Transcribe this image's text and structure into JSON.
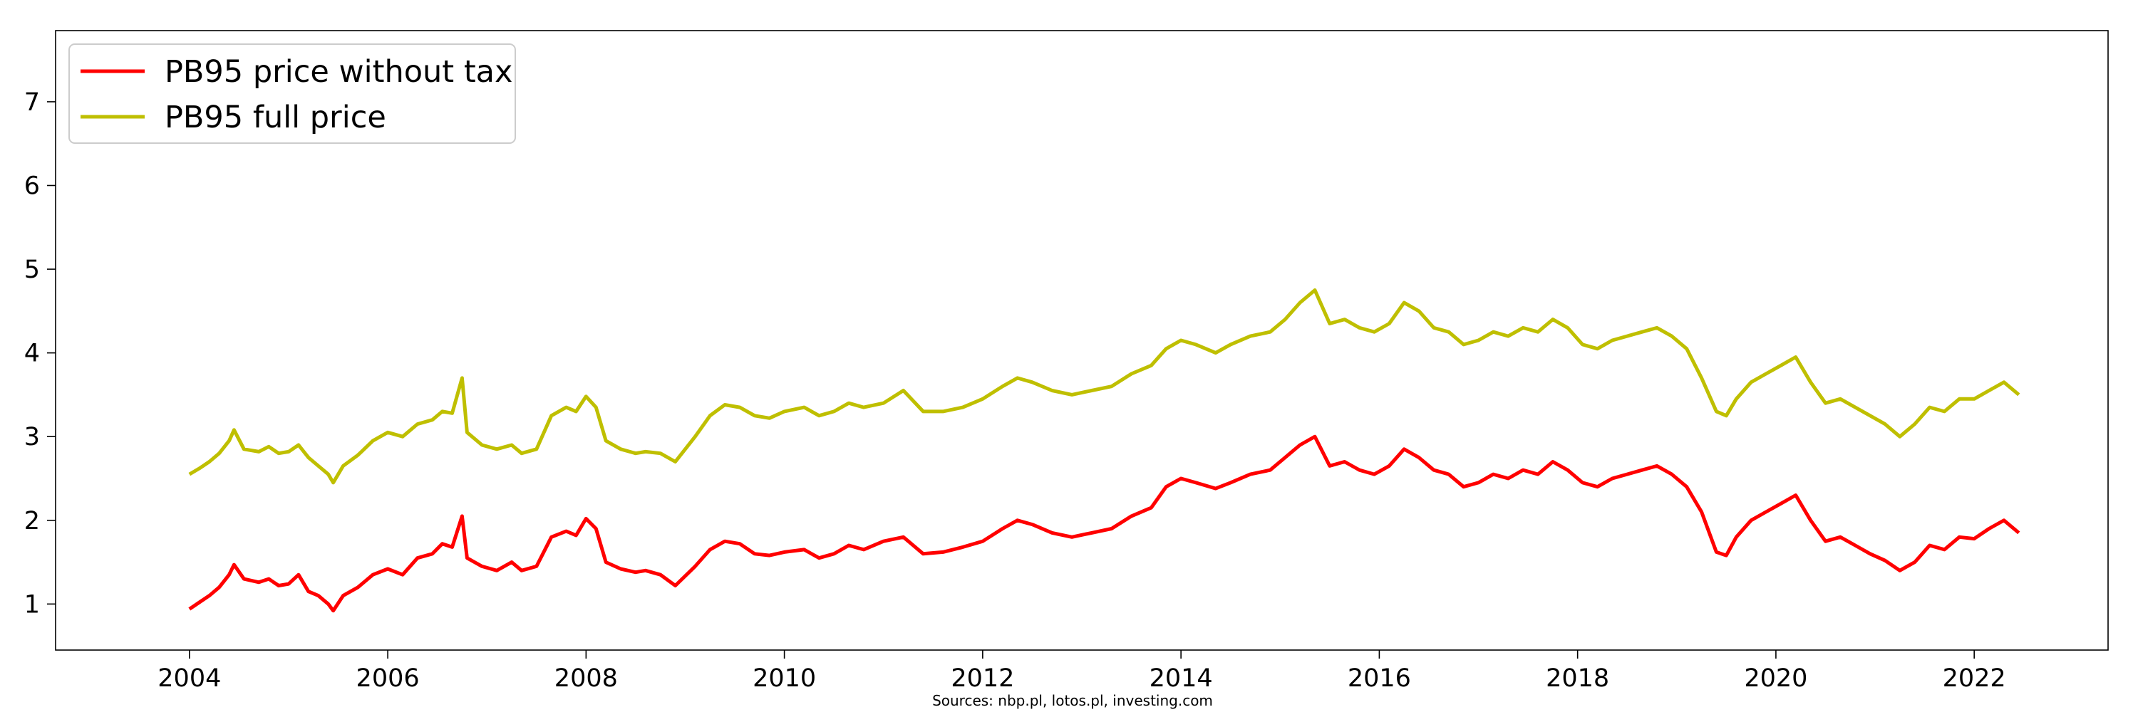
{
  "chart_data": {
    "type": "line",
    "title": "",
    "xlabel": "",
    "ylabel": "",
    "xlim": [
      2002.65,
      2023.35
    ],
    "ylim": [
      0.45,
      7.85
    ],
    "grid": false,
    "legend": "top-left",
    "source": "Sources: nbp.pl, lotos.pl, investing.com",
    "x_ticks": [
      2004,
      2006,
      2008,
      2010,
      2012,
      2014,
      2016,
      2018,
      2020,
      2022
    ],
    "y_ticks": [
      1,
      2,
      3,
      4,
      5,
      6,
      7
    ],
    "series": [
      {
        "name": "PB95 price without tax",
        "color": "#ff0000",
        "points": [
          [
            2004.0,
            0.94
          ],
          [
            2004.1,
            1.02
          ],
          [
            2004.2,
            1.1
          ],
          [
            2004.3,
            1.2
          ],
          [
            2004.4,
            1.35
          ],
          [
            2004.45,
            1.47
          ],
          [
            2004.55,
            1.3
          ],
          [
            2004.7,
            1.26
          ],
          [
            2004.8,
            1.3
          ],
          [
            2004.9,
            1.22
          ],
          [
            2005.0,
            1.24
          ],
          [
            2005.1,
            1.35
          ],
          [
            2005.2,
            1.15
          ],
          [
            2005.3,
            1.1
          ],
          [
            2005.4,
            1.0
          ],
          [
            2005.45,
            0.92
          ],
          [
            2005.55,
            1.1
          ],
          [
            2005.7,
            1.2
          ],
          [
            2005.85,
            1.35
          ],
          [
            2006.0,
            1.42
          ],
          [
            2006.15,
            1.35
          ],
          [
            2006.3,
            1.55
          ],
          [
            2006.45,
            1.6
          ],
          [
            2006.55,
            1.72
          ],
          [
            2006.65,
            1.68
          ],
          [
            2006.75,
            2.05
          ],
          [
            2006.8,
            1.55
          ],
          [
            2006.95,
            1.45
          ],
          [
            2007.1,
            1.4
          ],
          [
            2007.25,
            1.5
          ],
          [
            2007.35,
            1.4
          ],
          [
            2007.5,
            1.45
          ],
          [
            2007.65,
            1.8
          ],
          [
            2007.8,
            1.87
          ],
          [
            2007.9,
            1.82
          ],
          [
            2008.0,
            2.02
          ],
          [
            2008.1,
            1.9
          ],
          [
            2008.2,
            1.5
          ],
          [
            2008.35,
            1.42
          ],
          [
            2008.5,
            1.38
          ],
          [
            2008.6,
            1.4
          ],
          [
            2008.75,
            1.35
          ],
          [
            2008.9,
            1.22
          ],
          [
            2009.1,
            1.45
          ],
          [
            2009.25,
            1.65
          ],
          [
            2009.4,
            1.75
          ],
          [
            2009.55,
            1.72
          ],
          [
            2009.7,
            1.6
          ],
          [
            2009.85,
            1.58
          ],
          [
            2010.0,
            1.62
          ],
          [
            2010.2,
            1.65
          ],
          [
            2010.35,
            1.55
          ],
          [
            2010.5,
            1.6
          ],
          [
            2010.65,
            1.7
          ],
          [
            2010.8,
            1.65
          ],
          [
            2011.0,
            1.75
          ],
          [
            2011.2,
            1.8
          ],
          [
            2011.4,
            1.6
          ],
          [
            2011.6,
            1.62
          ],
          [
            2011.8,
            1.68
          ],
          [
            2012.0,
            1.75
          ],
          [
            2012.2,
            1.9
          ],
          [
            2012.35,
            2.0
          ],
          [
            2012.5,
            1.95
          ],
          [
            2012.7,
            1.85
          ],
          [
            2012.9,
            1.8
          ],
          [
            2013.1,
            1.85
          ],
          [
            2013.3,
            1.9
          ],
          [
            2013.5,
            2.05
          ],
          [
            2013.7,
            2.15
          ],
          [
            2013.85,
            2.4
          ],
          [
            2014.0,
            2.5
          ],
          [
            2014.15,
            2.45
          ],
          [
            2014.35,
            2.38
          ],
          [
            2014.5,
            2.45
          ],
          [
            2014.7,
            2.55
          ],
          [
            2014.9,
            2.6
          ],
          [
            2015.05,
            2.75
          ],
          [
            2015.2,
            2.9
          ],
          [
            2015.35,
            3.0
          ],
          [
            2015.5,
            2.65
          ],
          [
            2015.65,
            2.7
          ],
          [
            2015.8,
            2.6
          ],
          [
            2015.95,
            2.55
          ],
          [
            2016.1,
            2.65
          ],
          [
            2016.25,
            2.85
          ],
          [
            2016.4,
            2.75
          ],
          [
            2016.55,
            2.6
          ],
          [
            2016.7,
            2.55
          ],
          [
            2016.85,
            2.4
          ],
          [
            2017.0,
            2.45
          ],
          [
            2017.15,
            2.55
          ],
          [
            2017.3,
            2.5
          ],
          [
            2017.45,
            2.6
          ],
          [
            2017.6,
            2.55
          ],
          [
            2017.75,
            2.7
          ],
          [
            2017.9,
            2.6
          ],
          [
            2018.05,
            2.45
          ],
          [
            2018.2,
            2.4
          ],
          [
            2018.35,
            2.5
          ],
          [
            2018.5,
            2.55
          ],
          [
            2018.65,
            2.6
          ],
          [
            2018.8,
            2.65
          ],
          [
            2018.95,
            2.55
          ],
          [
            2019.1,
            2.4
          ],
          [
            2019.25,
            2.1
          ],
          [
            2019.4,
            1.62
          ],
          [
            2019.5,
            1.58
          ],
          [
            2019.6,
            1.8
          ],
          [
            2019.75,
            2.0
          ],
          [
            2019.9,
            2.1
          ],
          [
            2020.05,
            2.2
          ],
          [
            2020.2,
            2.3
          ],
          [
            2020.35,
            2.0
          ],
          [
            2020.5,
            1.75
          ],
          [
            2020.65,
            1.8
          ],
          [
            2020.8,
            1.7
          ],
          [
            2020.95,
            1.6
          ],
          [
            2021.1,
            1.52
          ],
          [
            2021.25,
            1.4
          ],
          [
            2021.4,
            1.5
          ],
          [
            2021.55,
            1.7
          ],
          [
            2021.7,
            1.65
          ],
          [
            2021.85,
            1.8
          ],
          [
            2022.0,
            1.78
          ],
          [
            2022.15,
            1.9
          ],
          [
            2022.3,
            2.0
          ],
          [
            2022.45,
            1.85
          ]
        ]
      },
      {
        "name": "PB95 full price",
        "color": "#bfbf00",
        "points": [
          [
            2004.0,
            2.55
          ],
          [
            2004.1,
            2.62
          ],
          [
            2004.2,
            2.7
          ],
          [
            2004.3,
            2.8
          ],
          [
            2004.4,
            2.95
          ],
          [
            2004.45,
            3.08
          ],
          [
            2004.55,
            2.85
          ],
          [
            2004.7,
            2.82
          ],
          [
            2004.8,
            2.88
          ],
          [
            2004.9,
            2.8
          ],
          [
            2005.0,
            2.82
          ],
          [
            2005.1,
            2.9
          ],
          [
            2005.2,
            2.75
          ],
          [
            2005.3,
            2.65
          ],
          [
            2005.4,
            2.55
          ],
          [
            2005.45,
            2.45
          ],
          [
            2005.55,
            2.65
          ],
          [
            2005.7,
            2.78
          ],
          [
            2005.85,
            2.95
          ],
          [
            2006.0,
            3.05
          ],
          [
            2006.15,
            3.0
          ],
          [
            2006.3,
            3.15
          ],
          [
            2006.45,
            3.2
          ],
          [
            2006.55,
            3.3
          ],
          [
            2006.65,
            3.28
          ],
          [
            2006.75,
            3.7
          ],
          [
            2006.8,
            3.05
          ],
          [
            2006.95,
            2.9
          ],
          [
            2007.1,
            2.85
          ],
          [
            2007.25,
            2.9
          ],
          [
            2007.35,
            2.8
          ],
          [
            2007.5,
            2.85
          ],
          [
            2007.65,
            3.25
          ],
          [
            2007.8,
            3.35
          ],
          [
            2007.9,
            3.3
          ],
          [
            2008.0,
            3.48
          ],
          [
            2008.1,
            3.35
          ],
          [
            2008.2,
            2.95
          ],
          [
            2008.35,
            2.85
          ],
          [
            2008.5,
            2.8
          ],
          [
            2008.6,
            2.82
          ],
          [
            2008.75,
            2.8
          ],
          [
            2008.9,
            2.7
          ],
          [
            2009.1,
            3.0
          ],
          [
            2009.25,
            3.25
          ],
          [
            2009.4,
            3.38
          ],
          [
            2009.55,
            3.35
          ],
          [
            2009.7,
            3.25
          ],
          [
            2009.85,
            3.22
          ],
          [
            2010.0,
            3.3
          ],
          [
            2010.2,
            3.35
          ],
          [
            2010.35,
            3.25
          ],
          [
            2010.5,
            3.3
          ],
          [
            2010.65,
            3.4
          ],
          [
            2010.8,
            3.35
          ],
          [
            2011.0,
            3.4
          ],
          [
            2011.2,
            3.55
          ],
          [
            2011.4,
            3.3
          ],
          [
            2011.6,
            3.3
          ],
          [
            2011.8,
            3.35
          ],
          [
            2012.0,
            3.45
          ],
          [
            2012.2,
            3.6
          ],
          [
            2012.35,
            3.7
          ],
          [
            2012.5,
            3.65
          ],
          [
            2012.7,
            3.55
          ],
          [
            2012.9,
            3.5
          ],
          [
            2013.1,
            3.55
          ],
          [
            2013.3,
            3.6
          ],
          [
            2013.5,
            3.75
          ],
          [
            2013.7,
            3.85
          ],
          [
            2013.85,
            4.05
          ],
          [
            2014.0,
            4.15
          ],
          [
            2014.15,
            4.1
          ],
          [
            2014.35,
            4.0
          ],
          [
            2014.5,
            4.1
          ],
          [
            2014.7,
            4.2
          ],
          [
            2014.9,
            4.25
          ],
          [
            2015.05,
            4.4
          ],
          [
            2015.2,
            4.6
          ],
          [
            2015.35,
            4.75
          ],
          [
            2015.5,
            4.35
          ],
          [
            2015.65,
            4.4
          ],
          [
            2015.8,
            4.3
          ],
          [
            2015.95,
            4.25
          ],
          [
            2016.1,
            4.35
          ],
          [
            2016.25,
            4.6
          ],
          [
            2016.4,
            4.5
          ],
          [
            2016.55,
            4.3
          ],
          [
            2016.7,
            4.25
          ],
          [
            2016.85,
            4.1
          ],
          [
            2017.0,
            4.15
          ],
          [
            2017.15,
            4.25
          ],
          [
            2017.3,
            4.2
          ],
          [
            2017.45,
            4.3
          ],
          [
            2017.6,
            4.25
          ],
          [
            2017.75,
            4.4
          ],
          [
            2017.9,
            4.3
          ],
          [
            2018.05,
            4.1
          ],
          [
            2018.2,
            4.05
          ],
          [
            2018.35,
            4.15
          ],
          [
            2018.5,
            4.2
          ],
          [
            2018.65,
            4.25
          ],
          [
            2018.8,
            4.3
          ],
          [
            2018.95,
            4.2
          ],
          [
            2019.1,
            4.05
          ],
          [
            2019.25,
            3.7
          ],
          [
            2019.4,
            3.3
          ],
          [
            2019.5,
            3.25
          ],
          [
            2019.6,
            3.45
          ],
          [
            2019.75,
            3.65
          ],
          [
            2019.9,
            3.75
          ],
          [
            2020.05,
            3.85
          ],
          [
            2020.2,
            3.95
          ],
          [
            2020.35,
            3.65
          ],
          [
            2020.5,
            3.4
          ],
          [
            2020.65,
            3.45
          ],
          [
            2020.8,
            3.35
          ],
          [
            2020.95,
            3.25
          ],
          [
            2021.1,
            3.15
          ],
          [
            2021.25,
            3.0
          ],
          [
            2021.4,
            3.15
          ],
          [
            2021.55,
            3.35
          ],
          [
            2021.7,
            3.3
          ],
          [
            2021.85,
            3.45
          ],
          [
            2022.0,
            3.45
          ],
          [
            2022.15,
            3.55
          ],
          [
            2022.3,
            3.65
          ],
          [
            2022.45,
            3.5
          ]
        ]
      }
    ]
  }
}
